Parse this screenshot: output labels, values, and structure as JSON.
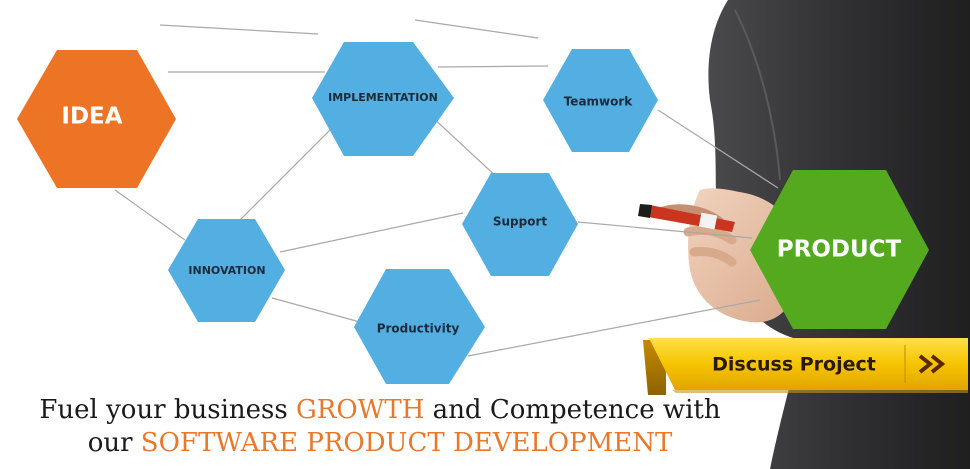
{
  "nodes": {
    "idea": "IDEA",
    "implementation": "IMPLEMENTATION",
    "teamwork": "Teamwork",
    "support": "Support",
    "innovation": "INNOVATION",
    "productivity": "Productivity",
    "product": "PRODUCT"
  },
  "cta": {
    "label": "Discuss Project",
    "icon": "double-chevron-right-icon"
  },
  "tagline": {
    "line1_pre": "Fuel your business ",
    "line1_accent": "GROWTH",
    "line1_post": " and Competence with",
    "line2_pre": "our ",
    "line2_accent": "SOFTWARE PRODUCT DEVELOPMENT"
  },
  "colors": {
    "orange": "#ec7424",
    "blue": "#53aee2",
    "green": "#54a91f",
    "accent_text": "#e8782a",
    "cta_yellow": "#f6c700"
  }
}
